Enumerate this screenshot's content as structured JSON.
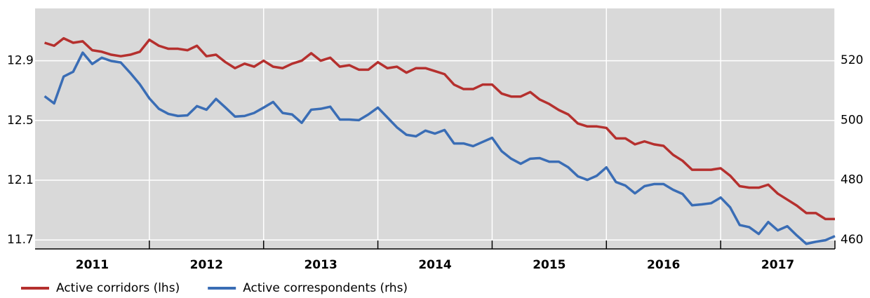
{
  "chart_data": {
    "type": "line",
    "categories": [
      null,
      null,
      null,
      null,
      null,
      "2011",
      null,
      null,
      null,
      null,
      null,
      null,
      null,
      null,
      null,
      null,
      null,
      "2012",
      null,
      null,
      null,
      null,
      null,
      null,
      null,
      null,
      null,
      null,
      null,
      "2013",
      null,
      null,
      null,
      null,
      null,
      null,
      null,
      null,
      null,
      null,
      null,
      "2014",
      null,
      null,
      null,
      null,
      null,
      null,
      null,
      null,
      null,
      null,
      null,
      "2015",
      null,
      null,
      null,
      null,
      null,
      null,
      null,
      null,
      null,
      null,
      null,
      "2016",
      null,
      null,
      null,
      null,
      null,
      null,
      null,
      null,
      null,
      null,
      null,
      "2017",
      null,
      null,
      null,
      null,
      null,
      null
    ],
    "series": [
      {
        "name": "Active corridors (lhs)",
        "color": "#b5302e",
        "axis": "y",
        "values": [
          13.02,
          13.0,
          13.05,
          13.02,
          13.03,
          12.97,
          12.96,
          12.94,
          12.93,
          12.94,
          12.96,
          13.04,
          13.0,
          12.98,
          12.98,
          12.97,
          13.0,
          12.93,
          12.94,
          12.89,
          12.85,
          12.88,
          12.86,
          12.9,
          12.86,
          12.85,
          12.88,
          12.9,
          12.95,
          12.9,
          12.92,
          12.86,
          12.87,
          12.84,
          12.84,
          12.89,
          12.85,
          12.86,
          12.82,
          12.85,
          12.85,
          12.83,
          12.81,
          12.74,
          12.71,
          12.71,
          12.74,
          12.74,
          12.68,
          12.66,
          12.66,
          12.69,
          12.64,
          12.61,
          12.57,
          12.54,
          12.48,
          12.46,
          12.46,
          12.45,
          12.38,
          12.38,
          12.34,
          12.36,
          12.34,
          12.33,
          12.27,
          12.23,
          12.17,
          12.17,
          12.17,
          12.18,
          12.13,
          12.06,
          12.05,
          12.05,
          12.07,
          12.01,
          11.97,
          11.93,
          11.88,
          11.88,
          11.84,
          11.84
        ]
      },
      {
        "name": "Active correspondents (rhs)",
        "color": "#3a6db5",
        "axis": "y2",
        "values": [
          508.0,
          505.6,
          514.6,
          516.2,
          522.6,
          518.8,
          520.9,
          519.8,
          519.3,
          515.8,
          512.0,
          507.3,
          503.8,
          502.1,
          501.4,
          501.6,
          504.7,
          503.5,
          507.1,
          504.2,
          501.2,
          501.4,
          502.4,
          504.2,
          506.1,
          502.4,
          501.9,
          499.1,
          503.5,
          503.8,
          504.5,
          500.2,
          500.2,
          500.0,
          501.9,
          504.2,
          500.9,
          497.6,
          495.1,
          494.6,
          496.5,
          495.5,
          496.7,
          492.2,
          492.2,
          491.3,
          492.7,
          494.1,
          489.6,
          487.1,
          485.4,
          487.1,
          487.3,
          486.1,
          486.1,
          484.2,
          481.2,
          480.0,
          481.4,
          484.2,
          479.3,
          478.1,
          475.5,
          477.9,
          478.6,
          478.6,
          476.7,
          475.3,
          471.5,
          471.8,
          472.2,
          474.1,
          470.8,
          464.9,
          464.2,
          461.9,
          465.9,
          463.1,
          464.5,
          461.4,
          458.6,
          459.3,
          459.8,
          461.2
        ]
      }
    ],
    "ylim": [
      11.64,
      13.25
    ],
    "yticks": [
      11.7,
      12.1,
      12.5,
      12.9
    ],
    "y2lim": [
      456.9,
      537.4
    ],
    "y2ticks": [
      460,
      480,
      500,
      520
    ],
    "grid": true,
    "legend": "bottom"
  }
}
